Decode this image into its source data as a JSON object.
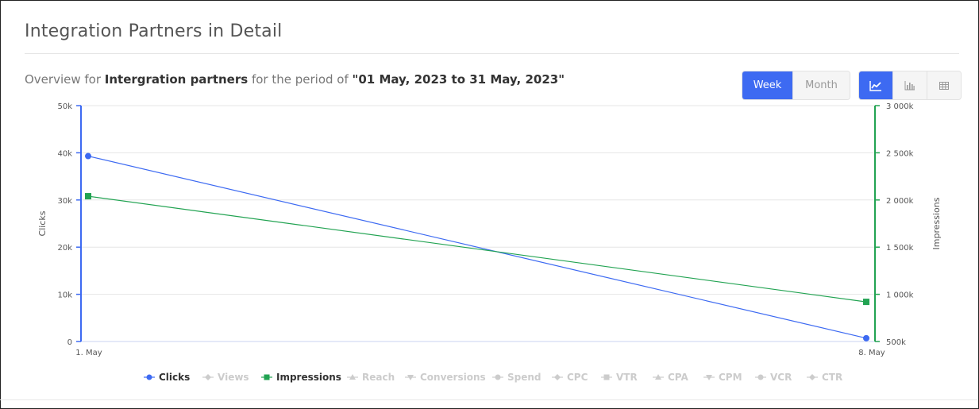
{
  "page": {
    "title": "Integration Partners in Detail"
  },
  "overview": {
    "prefix": "Overview for",
    "entity": "Intergration partners",
    "middle": "for the period of",
    "period": "\"01 May, 2023 to 31 May, 2023\""
  },
  "controls": {
    "period_buttons": [
      {
        "label": "Week",
        "active": true
      },
      {
        "label": "Month",
        "active": false
      }
    ],
    "view_buttons": [
      {
        "icon": "line-chart-icon",
        "active": true
      },
      {
        "icon": "bar-chart-icon",
        "active": false
      },
      {
        "icon": "table-icon",
        "active": false
      }
    ]
  },
  "colors": {
    "clicks": "#3d6af2",
    "impressions": "#22a352",
    "inactive": "#cccccc",
    "grid": "#e6e6e6"
  },
  "chart_data": {
    "type": "line",
    "categories": [
      "1. May",
      "8. May"
    ],
    "series": [
      {
        "name": "Clicks",
        "values": [
          39300,
          700
        ],
        "axis": "left",
        "marker": "circle",
        "color": "#3d6af2"
      },
      {
        "name": "Impressions",
        "values": [
          2040000,
          920000
        ],
        "axis": "right",
        "marker": "square",
        "color": "#22a352"
      }
    ],
    "y_left": {
      "label": "Clicks",
      "range": [
        0,
        50000
      ],
      "ticks": [
        0,
        10000,
        20000,
        30000,
        40000,
        50000
      ],
      "tick_labels": [
        "0",
        "10k",
        "20k",
        "30k",
        "40k",
        "50k"
      ]
    },
    "y_right": {
      "label": "Impressions",
      "range": [
        500000,
        3000000
      ],
      "ticks": [
        500000,
        1000000,
        1500000,
        2000000,
        2500000,
        3000000
      ],
      "tick_labels": [
        "500k",
        "1 000k",
        "1 500k",
        "2 000k",
        "2 500k",
        "3 000k"
      ]
    },
    "grid": true,
    "legend_position": "bottom-center",
    "legend": [
      {
        "name": "Clicks",
        "marker": "circle",
        "active": true
      },
      {
        "name": "Views",
        "marker": "diamond",
        "active": false
      },
      {
        "name": "Impressions",
        "marker": "square",
        "active": true
      },
      {
        "name": "Reach",
        "marker": "triangle",
        "active": false
      },
      {
        "name": "Conversions",
        "marker": "triangle-down",
        "active": false
      },
      {
        "name": "Spend",
        "marker": "circle",
        "active": false
      },
      {
        "name": "CPC",
        "marker": "diamond",
        "active": false
      },
      {
        "name": "VTR",
        "marker": "square",
        "active": false
      },
      {
        "name": "CPA",
        "marker": "triangle",
        "active": false
      },
      {
        "name": "CPM",
        "marker": "triangle-down",
        "active": false
      },
      {
        "name": "VCR",
        "marker": "circle",
        "active": false
      },
      {
        "name": "CTR",
        "marker": "diamond",
        "active": false
      }
    ]
  }
}
